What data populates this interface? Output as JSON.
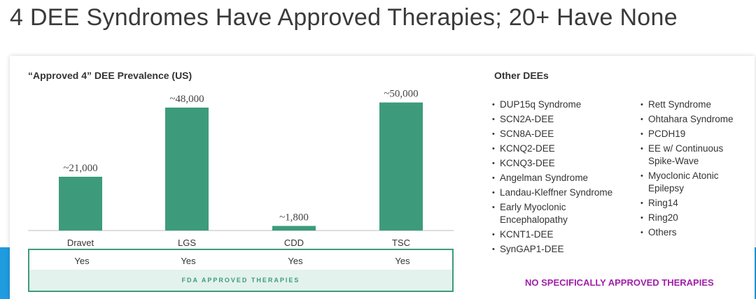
{
  "title": "4 DEE Syndromes Have Approved Therapies; 20+ Have None",
  "chart_data": {
    "type": "bar",
    "title": "“Approved 4” DEE Prevalence (US)",
    "categories": [
      "Dravet",
      "LGS",
      "CDD",
      "TSC"
    ],
    "values": [
      21000,
      48000,
      1800,
      50000
    ],
    "data_labels": [
      "~21,000",
      "~48,000",
      "~1,800",
      "~50,000"
    ],
    "ylim": [
      0,
      60000
    ],
    "grid": false,
    "bar_color": "#3d9b7c"
  },
  "approved": {
    "values": [
      "Yes",
      "Yes",
      "Yes",
      "Yes"
    ],
    "label": "FDA APPROVED THERAPIES",
    "color": "#3d9b7c"
  },
  "other": {
    "title": "Other DEEs",
    "col1": [
      "DUP15q Syndrome",
      "SCN2A-DEE",
      "SCN8A-DEE",
      "KCNQ2-DEE",
      "KCNQ3-DEE",
      "Angelman Syndrome",
      "Landau-Kleffner Syndrome",
      "Early Myoclonic Encephalopathy",
      "KCNT1-DEE",
      "SynGAP1-DEE"
    ],
    "col2": [
      "Rett Syndrome",
      "Ohtahara Syndrome",
      "PCDH19",
      "EE w/ Continuous Spike-Wave",
      "Myoclonic Atonic Epilepsy",
      "Ring14",
      "Ring20",
      "Others"
    ],
    "none_label": "NO SPECIFICALLY APPROVED THERAPIES",
    "none_color": "#a020a8"
  }
}
